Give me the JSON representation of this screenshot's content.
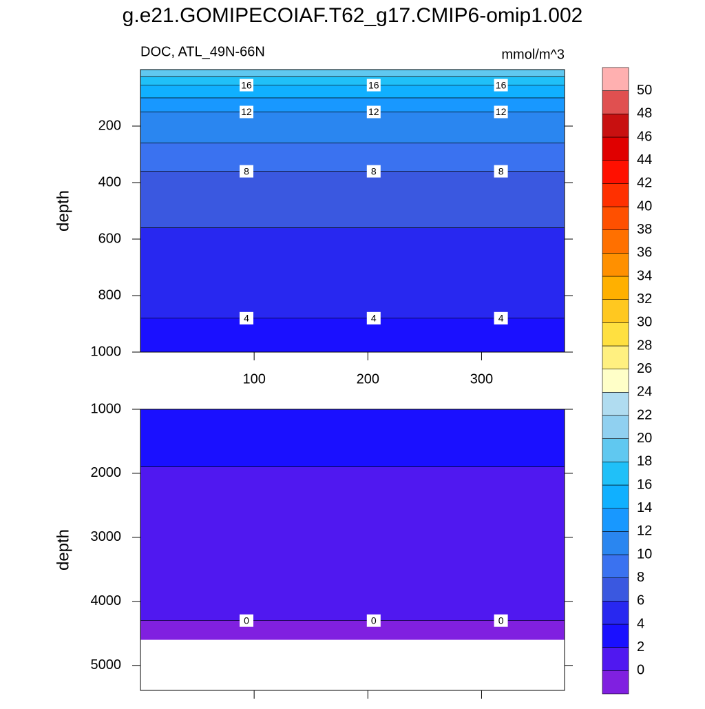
{
  "title": "g.e21.GOMIPECOIAF.T62_g17.CMIP6-omip1.002",
  "colorbar": {
    "levels": [
      0,
      2,
      4,
      6,
      8,
      10,
      12,
      14,
      16,
      18,
      20,
      22,
      24,
      26,
      28,
      30,
      32,
      34,
      36,
      38,
      40,
      42,
      44,
      46,
      48,
      50
    ],
    "colors": [
      "#8020e0",
      "#5018f0",
      "#1a10ff",
      "#2828f0",
      "#3a58e0",
      "#3a72f0",
      "#2a86f0",
      "#1898ff",
      "#10b0ff",
      "#20c0f8",
      "#60c8f0",
      "#90d0f0",
      "#b0dcf0",
      "#ffffc8",
      "#fff080",
      "#ffe040",
      "#ffc820",
      "#ffb000",
      "#ff9000",
      "#ff7000",
      "#ff5000",
      "#ff3000",
      "#ff1000",
      "#e00000",
      "#c81010",
      "#e05050",
      "#ffb0b0"
    ]
  },
  "chart_data": [
    {
      "type": "contour",
      "subtitle_left": "DOC, ATL_49N-66N",
      "subtitle_right": "mmol/m^3",
      "ylabel": "depth",
      "xlim": [
        0,
        373
      ],
      "xticks": [
        100,
        200,
        300
      ],
      "ylim": [
        1000,
        0
      ],
      "yticks": [
        200,
        400,
        600,
        800,
        1000
      ],
      "contours": [
        {
          "level": 18,
          "depth": 25
        },
        {
          "level": 16,
          "depth": 55
        },
        {
          "level": 14,
          "depth": 100
        },
        {
          "level": 12,
          "depth": 150
        },
        {
          "level": 10,
          "depth": 260
        },
        {
          "level": 8,
          "depth": 360
        },
        {
          "level": 6,
          "depth": 560
        },
        {
          "level": 4,
          "depth": 880
        }
      ]
    },
    {
      "type": "contour",
      "ylabel": "depth",
      "xlim": [
        0,
        373
      ],
      "xticks": [
        {
          "value": 100,
          "label": ""
        },
        {
          "value": 200,
          "label": ""
        },
        {
          "value": 300,
          "label": ""
        }
      ],
      "ylim": [
        5390,
        1000
      ],
      "yticks": [
        1000,
        2000,
        3000,
        4000,
        5000
      ],
      "data_bottom": 4600,
      "contours": [
        {
          "level": 2,
          "depth": 1900
        },
        {
          "level": 0,
          "depth": 4300
        }
      ]
    }
  ]
}
